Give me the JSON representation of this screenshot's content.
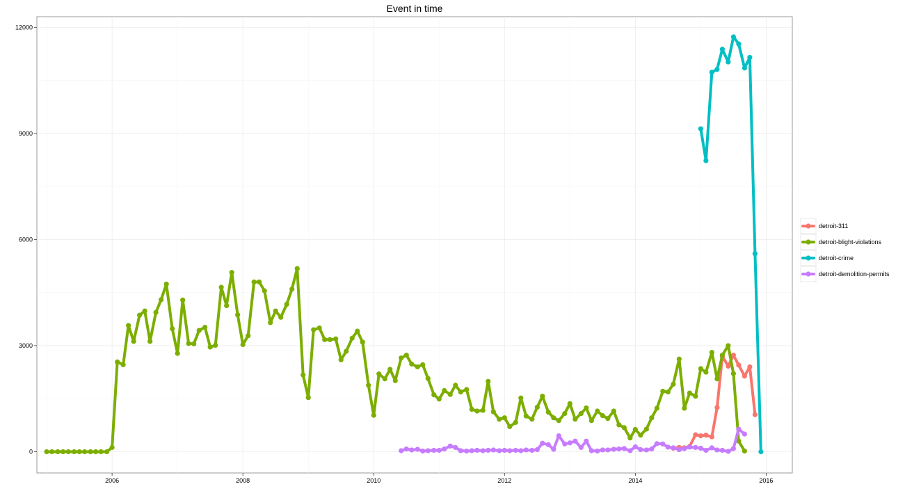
{
  "chart_data": {
    "type": "line",
    "title": "Event in time",
    "xlabel": "",
    "ylabel": "",
    "xlim": [
      2004.85,
      2016.4
    ],
    "ylim": [
      -600,
      12300
    ],
    "x_ticks": [
      2006,
      2008,
      2010,
      2012,
      2014,
      2016
    ],
    "x_minor_ticks": [
      2005,
      2007,
      2009,
      2011,
      2013,
      2015
    ],
    "y_ticks": [
      0,
      3000,
      6000,
      9000,
      12000
    ],
    "y_minor_ticks": [
      1500,
      4500,
      7500,
      10500
    ],
    "grid": true,
    "legend_position": "right",
    "series": [
      {
        "name": "detroit-311",
        "color": "#F8766D",
        "points": [
          [
            2014.58,
            100
          ],
          [
            2014.67,
            120
          ],
          [
            2014.75,
            110
          ],
          [
            2014.83,
            150
          ],
          [
            2014.92,
            480
          ],
          [
            2015.0,
            450
          ],
          [
            2015.08,
            470
          ],
          [
            2015.17,
            420
          ],
          [
            2015.25,
            1250
          ],
          [
            2015.33,
            2700
          ],
          [
            2015.42,
            2420
          ],
          [
            2015.5,
            2730
          ],
          [
            2015.58,
            2450
          ],
          [
            2015.67,
            2140
          ],
          [
            2015.75,
            2400
          ],
          [
            2015.83,
            1050
          ]
        ]
      },
      {
        "name": "detroit-blight-violations",
        "color": "#7CAE00",
        "points": [
          [
            2005.0,
            0
          ],
          [
            2005.08,
            0
          ],
          [
            2005.17,
            0
          ],
          [
            2005.25,
            0
          ],
          [
            2005.33,
            0
          ],
          [
            2005.42,
            0
          ],
          [
            2005.5,
            0
          ],
          [
            2005.58,
            0
          ],
          [
            2005.67,
            0
          ],
          [
            2005.75,
            0
          ],
          [
            2005.83,
            0
          ],
          [
            2005.92,
            0
          ],
          [
            2006.0,
            120
          ],
          [
            2006.08,
            2540
          ],
          [
            2006.17,
            2460
          ],
          [
            2006.25,
            3570
          ],
          [
            2006.33,
            3120
          ],
          [
            2006.42,
            3860
          ],
          [
            2006.5,
            3980
          ],
          [
            2006.58,
            3120
          ],
          [
            2006.67,
            3940
          ],
          [
            2006.75,
            4300
          ],
          [
            2006.83,
            4740
          ],
          [
            2006.92,
            3480
          ],
          [
            2007.0,
            2780
          ],
          [
            2007.08,
            4290
          ],
          [
            2007.17,
            3060
          ],
          [
            2007.25,
            3050
          ],
          [
            2007.33,
            3430
          ],
          [
            2007.42,
            3520
          ],
          [
            2007.5,
            2960
          ],
          [
            2007.58,
            3010
          ],
          [
            2007.67,
            4650
          ],
          [
            2007.75,
            4130
          ],
          [
            2007.83,
            5070
          ],
          [
            2007.92,
            3870
          ],
          [
            2008.0,
            3030
          ],
          [
            2008.08,
            3280
          ],
          [
            2008.17,
            4800
          ],
          [
            2008.25,
            4800
          ],
          [
            2008.33,
            4550
          ],
          [
            2008.42,
            3650
          ],
          [
            2008.5,
            3980
          ],
          [
            2008.58,
            3800
          ],
          [
            2008.67,
            4170
          ],
          [
            2008.75,
            4600
          ],
          [
            2008.83,
            5180
          ],
          [
            2008.92,
            2170
          ],
          [
            2009.0,
            1530
          ],
          [
            2009.08,
            3450
          ],
          [
            2009.17,
            3500
          ],
          [
            2009.25,
            3170
          ],
          [
            2009.33,
            3170
          ],
          [
            2009.42,
            3190
          ],
          [
            2009.5,
            2600
          ],
          [
            2009.58,
            2840
          ],
          [
            2009.67,
            3210
          ],
          [
            2009.75,
            3410
          ],
          [
            2009.83,
            3100
          ],
          [
            2009.92,
            1880
          ],
          [
            2010.0,
            1030
          ],
          [
            2010.08,
            2200
          ],
          [
            2010.17,
            2060
          ],
          [
            2010.25,
            2330
          ],
          [
            2010.33,
            2010
          ],
          [
            2010.42,
            2650
          ],
          [
            2010.5,
            2730
          ],
          [
            2010.58,
            2480
          ],
          [
            2010.67,
            2400
          ],
          [
            2010.75,
            2460
          ],
          [
            2010.83,
            2070
          ],
          [
            2010.92,
            1610
          ],
          [
            2011.0,
            1490
          ],
          [
            2011.08,
            1730
          ],
          [
            2011.17,
            1620
          ],
          [
            2011.25,
            1880
          ],
          [
            2011.33,
            1690
          ],
          [
            2011.42,
            1760
          ],
          [
            2011.5,
            1200
          ],
          [
            2011.58,
            1150
          ],
          [
            2011.67,
            1170
          ],
          [
            2011.75,
            1990
          ],
          [
            2011.83,
            1130
          ],
          [
            2011.92,
            920
          ],
          [
            2012.0,
            960
          ],
          [
            2012.08,
            710
          ],
          [
            2012.17,
            830
          ],
          [
            2012.25,
            1520
          ],
          [
            2012.33,
            1010
          ],
          [
            2012.42,
            920
          ],
          [
            2012.5,
            1260
          ],
          [
            2012.58,
            1570
          ],
          [
            2012.67,
            1120
          ],
          [
            2012.75,
            960
          ],
          [
            2012.83,
            880
          ],
          [
            2012.92,
            1080
          ],
          [
            2013.0,
            1360
          ],
          [
            2013.08,
            920
          ],
          [
            2013.17,
            1080
          ],
          [
            2013.25,
            1240
          ],
          [
            2013.33,
            880
          ],
          [
            2013.42,
            1150
          ],
          [
            2013.5,
            1020
          ],
          [
            2013.58,
            940
          ],
          [
            2013.67,
            1150
          ],
          [
            2013.75,
            760
          ],
          [
            2013.83,
            680
          ],
          [
            2013.92,
            390
          ],
          [
            2014.0,
            630
          ],
          [
            2014.08,
            470
          ],
          [
            2014.17,
            640
          ],
          [
            2014.25,
            960
          ],
          [
            2014.33,
            1230
          ],
          [
            2014.42,
            1710
          ],
          [
            2014.5,
            1690
          ],
          [
            2014.58,
            1910
          ],
          [
            2014.67,
            2620
          ],
          [
            2014.75,
            1230
          ],
          [
            2014.83,
            1660
          ],
          [
            2014.92,
            1570
          ],
          [
            2015.0,
            2350
          ],
          [
            2015.08,
            2250
          ],
          [
            2015.17,
            2810
          ],
          [
            2015.25,
            2060
          ],
          [
            2015.33,
            2730
          ],
          [
            2015.42,
            3000
          ],
          [
            2015.5,
            2210
          ],
          [
            2015.58,
            300
          ],
          [
            2015.67,
            20
          ]
        ]
      },
      {
        "name": "detroit-crime",
        "color": "#00BFC4",
        "points": [
          [
            2015.0,
            9130
          ],
          [
            2015.08,
            8230
          ],
          [
            2015.17,
            10730
          ],
          [
            2015.25,
            10810
          ],
          [
            2015.33,
            11380
          ],
          [
            2015.42,
            11020
          ],
          [
            2015.5,
            11730
          ],
          [
            2015.58,
            11530
          ],
          [
            2015.67,
            10850
          ],
          [
            2015.75,
            11150
          ],
          [
            2015.83,
            5600
          ],
          [
            2015.92,
            0
          ]
        ]
      },
      {
        "name": "detroit-demolition-permits",
        "color": "#C77CFF",
        "points": [
          [
            2010.42,
            30
          ],
          [
            2010.5,
            80
          ],
          [
            2010.58,
            50
          ],
          [
            2010.67,
            70
          ],
          [
            2010.75,
            20
          ],
          [
            2010.83,
            30
          ],
          [
            2010.92,
            40
          ],
          [
            2011.0,
            40
          ],
          [
            2011.08,
            80
          ],
          [
            2011.17,
            160
          ],
          [
            2011.25,
            120
          ],
          [
            2011.33,
            30
          ],
          [
            2011.42,
            20
          ],
          [
            2011.5,
            30
          ],
          [
            2011.58,
            40
          ],
          [
            2011.67,
            30
          ],
          [
            2011.75,
            40
          ],
          [
            2011.83,
            50
          ],
          [
            2011.92,
            30
          ],
          [
            2012.0,
            40
          ],
          [
            2012.08,
            30
          ],
          [
            2012.17,
            40
          ],
          [
            2012.25,
            30
          ],
          [
            2012.33,
            50
          ],
          [
            2012.42,
            40
          ],
          [
            2012.5,
            60
          ],
          [
            2012.58,
            240
          ],
          [
            2012.67,
            200
          ],
          [
            2012.75,
            70
          ],
          [
            2012.83,
            450
          ],
          [
            2012.92,
            220
          ],
          [
            2013.0,
            250
          ],
          [
            2013.08,
            300
          ],
          [
            2013.17,
            120
          ],
          [
            2013.25,
            300
          ],
          [
            2013.33,
            30
          ],
          [
            2013.42,
            20
          ],
          [
            2013.5,
            50
          ],
          [
            2013.58,
            50
          ],
          [
            2013.67,
            70
          ],
          [
            2013.75,
            80
          ],
          [
            2013.83,
            90
          ],
          [
            2013.92,
            30
          ],
          [
            2014.0,
            140
          ],
          [
            2014.08,
            60
          ],
          [
            2014.17,
            50
          ],
          [
            2014.25,
            80
          ],
          [
            2014.33,
            230
          ],
          [
            2014.42,
            220
          ],
          [
            2014.5,
            130
          ],
          [
            2014.58,
            110
          ],
          [
            2014.67,
            60
          ],
          [
            2014.75,
            90
          ],
          [
            2014.83,
            130
          ],
          [
            2014.92,
            120
          ],
          [
            2015.0,
            100
          ],
          [
            2015.08,
            40
          ],
          [
            2015.17,
            110
          ],
          [
            2015.25,
            50
          ],
          [
            2015.33,
            40
          ],
          [
            2015.42,
            10
          ],
          [
            2015.5,
            90
          ],
          [
            2015.58,
            640
          ],
          [
            2015.67,
            500
          ]
        ]
      }
    ]
  }
}
